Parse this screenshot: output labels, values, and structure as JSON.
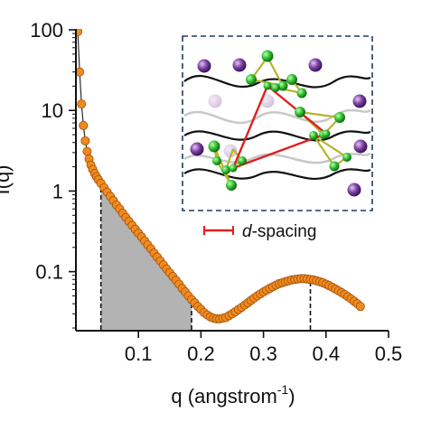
{
  "chart_data": {
    "type": "scatter",
    "xlabel": "q (angstrom",
    "xlabel_sup": "-1",
    "xlabel_close": ")",
    "ylabel": "I(q)",
    "xscale": "linear",
    "yscale": "log",
    "xlim": [
      0.0,
      0.5
    ],
    "ylim": [
      0.02,
      100
    ],
    "xticks": [
      0.1,
      0.2,
      0.3,
      0.4,
      0.5
    ],
    "xtick_labels": [
      "0.1",
      "0.2",
      "0.3",
      "0.4",
      "0.5"
    ],
    "yticks": [
      0.1,
      1,
      10,
      100
    ],
    "ytick_labels": [
      "0.1",
      "1",
      "10",
      "100"
    ],
    "grid": false,
    "series": [
      {
        "color": "#f08a1e",
        "edge_color": "#a0500a",
        "x": [
          0.003,
          0.006,
          0.009,
          0.012,
          0.015,
          0.018,
          0.021,
          0.024,
          0.027,
          0.03,
          0.033,
          0.036,
          0.04,
          0.045,
          0.05,
          0.055,
          0.06,
          0.065,
          0.07,
          0.075,
          0.08,
          0.085,
          0.09,
          0.095,
          0.1,
          0.105,
          0.11,
          0.115,
          0.12,
          0.125,
          0.13,
          0.135,
          0.14,
          0.145,
          0.15,
          0.155,
          0.16,
          0.165,
          0.17,
          0.175,
          0.18,
          0.185,
          0.19,
          0.195,
          0.2,
          0.205,
          0.21,
          0.215,
          0.22,
          0.225,
          0.23,
          0.235,
          0.24,
          0.245,
          0.25,
          0.255,
          0.26,
          0.265,
          0.27,
          0.275,
          0.28,
          0.285,
          0.29,
          0.295,
          0.3,
          0.305,
          0.31,
          0.315,
          0.32,
          0.325,
          0.33,
          0.335,
          0.34,
          0.345,
          0.35,
          0.355,
          0.36,
          0.365,
          0.37,
          0.375,
          0.38,
          0.385,
          0.39,
          0.395,
          0.4,
          0.405,
          0.41,
          0.415,
          0.42,
          0.425,
          0.43,
          0.435,
          0.44,
          0.445,
          0.45,
          0.455
        ],
        "y": [
          95,
          30,
          12,
          6.5,
          4.2,
          3.1,
          2.5,
          2.1,
          1.85,
          1.65,
          1.5,
          1.38,
          1.25,
          1.1,
          0.97,
          0.86,
          0.76,
          0.67,
          0.6,
          0.53,
          0.47,
          0.42,
          0.375,
          0.335,
          0.3,
          0.27,
          0.24,
          0.215,
          0.192,
          0.17,
          0.152,
          0.136,
          0.121,
          0.108,
          0.097,
          0.087,
          0.078,
          0.07,
          0.062,
          0.056,
          0.05,
          0.045,
          0.041,
          0.037,
          0.034,
          0.031,
          0.029,
          0.0275,
          0.0265,
          0.026,
          0.026,
          0.0265,
          0.027,
          0.0285,
          0.03,
          0.0318,
          0.034,
          0.036,
          0.0385,
          0.041,
          0.044,
          0.047,
          0.05,
          0.053,
          0.056,
          0.059,
          0.062,
          0.065,
          0.068,
          0.071,
          0.073,
          0.075,
          0.077,
          0.079,
          0.08,
          0.081,
          0.082,
          0.082,
          0.081,
          0.08,
          0.079,
          0.077,
          0.075,
          0.073,
          0.07,
          0.067,
          0.064,
          0.061,
          0.058,
          0.055,
          0.052,
          0.049,
          0.046,
          0.043,
          0.04,
          0.037
        ]
      }
    ],
    "shaded_region": {
      "x_start": 0.04,
      "x_end": 0.185,
      "color": "#b3b3b3"
    },
    "vlines": [
      {
        "x": 0.04,
        "style": "dashed"
      },
      {
        "x": 0.185,
        "style": "dashed"
      },
      {
        "x": 0.375,
        "style": "dashed"
      }
    ],
    "inset": {
      "legend_label_italic": "d",
      "legend_label_rest": "-spacing",
      "legend_color": "#e02020",
      "border_color": "#1f3a66",
      "chain_color": "#111111",
      "gray_chain_color": "#c8c8c8",
      "green_atom_color": "#2fbf2f",
      "purple_atom_color": "#7a3fa0",
      "tetra_color": "#b5b52a",
      "dspacing_color": "#e02020"
    }
  }
}
